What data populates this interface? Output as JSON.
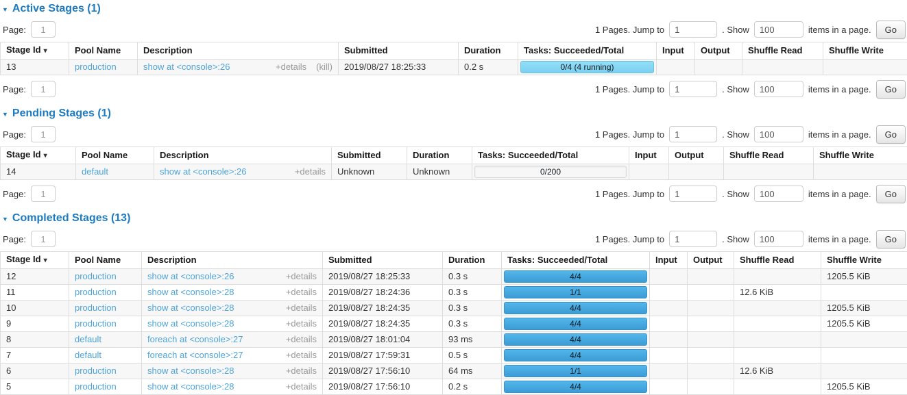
{
  "icons": {
    "collapse": "▼",
    "sort_desc": "▾"
  },
  "columns": [
    "Stage Id",
    "Pool Name",
    "Description",
    "Submitted",
    "Duration",
    "Tasks: Succeeded/Total",
    "Input",
    "Output",
    "Shuffle Read",
    "Shuffle Write"
  ],
  "pager": {
    "page_label": "Page:",
    "page_value": "1",
    "pages_text": "1 Pages. Jump to",
    "jump_value": "1",
    "dot_show": ". Show",
    "show_value": "100",
    "items_text": "items in a page.",
    "go": "Go"
  },
  "sections": [
    {
      "id": "active",
      "title": "Active Stages (1)",
      "bottom_pager": true,
      "rows": [
        {
          "stage_id": "13",
          "pool": "production",
          "description": "show at <console>:26",
          "details": "+details",
          "kill": "(kill)",
          "submitted": "2019/08/27 18:25:33",
          "duration": "0.2 s",
          "tasks_label": "0/4 (4 running)",
          "tasks_kind": "running",
          "input": "",
          "output": "",
          "shuffle_read": "",
          "shuffle_write": ""
        }
      ]
    },
    {
      "id": "pending",
      "title": "Pending Stages (1)",
      "bottom_pager": true,
      "rows": [
        {
          "stage_id": "14",
          "pool": "default",
          "description": "show at <console>:26",
          "details": "+details",
          "kill": null,
          "submitted": "Unknown",
          "duration": "Unknown",
          "tasks_label": "0/200",
          "tasks_kind": "empty",
          "input": "",
          "output": "",
          "shuffle_read": "",
          "shuffle_write": ""
        }
      ]
    },
    {
      "id": "completed",
      "title": "Completed Stages (13)",
      "bottom_pager": false,
      "rows": [
        {
          "stage_id": "12",
          "pool": "production",
          "description": "show at <console>:26",
          "details": "+details",
          "kill": null,
          "submitted": "2019/08/27 18:25:33",
          "duration": "0.3 s",
          "tasks_label": "4/4",
          "tasks_kind": "done",
          "input": "",
          "output": "",
          "shuffle_read": "",
          "shuffle_write": "1205.5 KiB"
        },
        {
          "stage_id": "11",
          "pool": "production",
          "description": "show at <console>:28",
          "details": "+details",
          "kill": null,
          "submitted": "2019/08/27 18:24:36",
          "duration": "0.3 s",
          "tasks_label": "1/1",
          "tasks_kind": "done",
          "input": "",
          "output": "",
          "shuffle_read": "12.6 KiB",
          "shuffle_write": ""
        },
        {
          "stage_id": "10",
          "pool": "production",
          "description": "show at <console>:28",
          "details": "+details",
          "kill": null,
          "submitted": "2019/08/27 18:24:35",
          "duration": "0.3 s",
          "tasks_label": "4/4",
          "tasks_kind": "done",
          "input": "",
          "output": "",
          "shuffle_read": "",
          "shuffle_write": "1205.5 KiB"
        },
        {
          "stage_id": "9",
          "pool": "production",
          "description": "show at <console>:28",
          "details": "+details",
          "kill": null,
          "submitted": "2019/08/27 18:24:35",
          "duration": "0.3 s",
          "tasks_label": "4/4",
          "tasks_kind": "done",
          "input": "",
          "output": "",
          "shuffle_read": "",
          "shuffle_write": "1205.5 KiB"
        },
        {
          "stage_id": "8",
          "pool": "default",
          "description": "foreach at <console>:27",
          "details": "+details",
          "kill": null,
          "submitted": "2019/08/27 18:01:04",
          "duration": "93 ms",
          "tasks_label": "4/4",
          "tasks_kind": "done",
          "input": "",
          "output": "",
          "shuffle_read": "",
          "shuffle_write": ""
        },
        {
          "stage_id": "7",
          "pool": "default",
          "description": "foreach at <console>:27",
          "details": "+details",
          "kill": null,
          "submitted": "2019/08/27 17:59:31",
          "duration": "0.5 s",
          "tasks_label": "4/4",
          "tasks_kind": "done",
          "input": "",
          "output": "",
          "shuffle_read": "",
          "shuffle_write": ""
        },
        {
          "stage_id": "6",
          "pool": "production",
          "description": "show at <console>:28",
          "details": "+details",
          "kill": null,
          "submitted": "2019/08/27 17:56:10",
          "duration": "64 ms",
          "tasks_label": "1/1",
          "tasks_kind": "done",
          "input": "",
          "output": "",
          "shuffle_read": "12.6 KiB",
          "shuffle_write": ""
        },
        {
          "stage_id": "5",
          "pool": "production",
          "description": "show at <console>:28",
          "details": "+details",
          "kill": null,
          "submitted": "2019/08/27 17:56:10",
          "duration": "0.2 s",
          "tasks_label": "4/4",
          "tasks_kind": "done",
          "input": "",
          "output": "",
          "shuffle_read": "",
          "shuffle_write": "1205.5 KiB"
        }
      ]
    }
  ]
}
